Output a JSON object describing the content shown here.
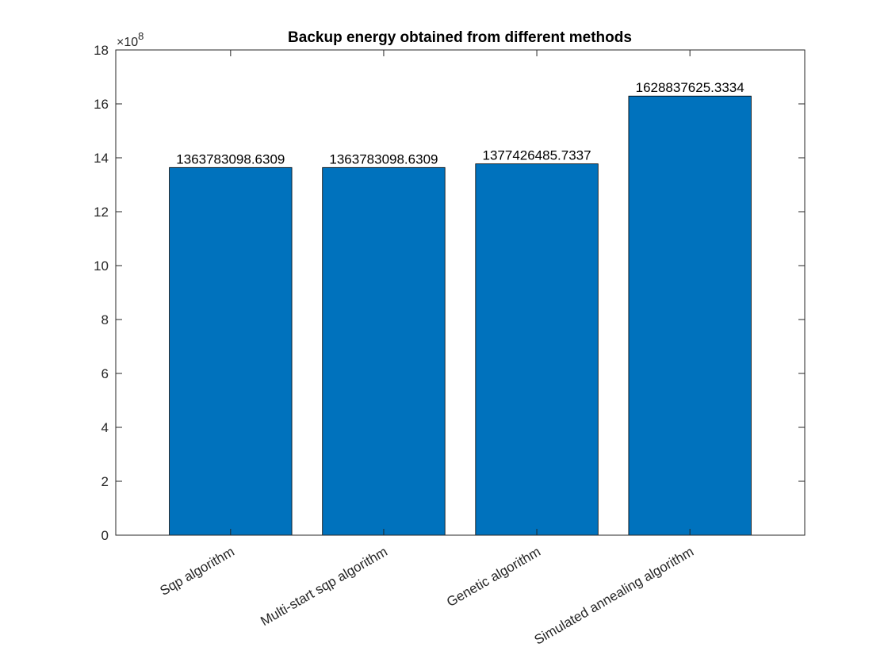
{
  "chart_data": {
    "type": "bar",
    "title": "Backup energy obtained from different methods",
    "xlabel": "",
    "ylabel": "",
    "categories": [
      "Sqp algorithm",
      "Multi-start sqp algorithm",
      "Genetic algorithm",
      "Simulated annealing algorithm"
    ],
    "values": [
      1363783098.6309,
      1363783098.6309,
      1377426485.7337,
      1628837625.3334
    ],
    "data_labels": [
      "1363783098.6309",
      "1363783098.6309",
      "1377426485.7337",
      "1628837625.3334"
    ],
    "ylim": [
      0,
      1800000000
    ],
    "y_ticks": [
      0,
      2,
      4,
      6,
      8,
      10,
      12,
      14,
      16,
      18
    ],
    "y_tick_labels": [
      "0",
      "2",
      "4",
      "6",
      "8",
      "10",
      "12",
      "14",
      "16",
      "18"
    ],
    "y_exponent_base": "×10",
    "y_exponent_power": "8",
    "y_scale_factor": 100000000,
    "grid": false,
    "bar_color": "#0072BD"
  }
}
